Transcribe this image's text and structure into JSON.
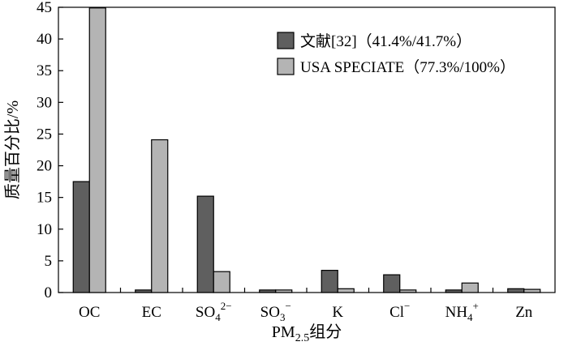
{
  "chart_data": {
    "type": "bar",
    "categories": [
      {
        "base": "OC",
        "sub": "",
        "sup": ""
      },
      {
        "base": "EC",
        "sub": "",
        "sup": ""
      },
      {
        "base": "SO",
        "sub": "4",
        "sup": "2−"
      },
      {
        "base": "SO",
        "sub": "3",
        "sup": "−"
      },
      {
        "base": "K",
        "sub": "",
        "sup": ""
      },
      {
        "base": "Cl",
        "sub": "",
        "sup": "−"
      },
      {
        "base": "NH",
        "sub": "4",
        "sup": "+"
      },
      {
        "base": "Zn",
        "sub": "",
        "sup": ""
      }
    ],
    "series": [
      {
        "name": "文献[32]（41.4%/41.7%）",
        "color": "#5f5f5f",
        "values": [
          17.5,
          0.4,
          15.2,
          0.4,
          3.5,
          2.8,
          0.4,
          0.6
        ]
      },
      {
        "name": "USA SPECIATE（77.3%/100%）",
        "color": "#b4b4b4",
        "values": [
          44.9,
          24.1,
          3.3,
          0.4,
          0.6,
          0.4,
          1.5,
          0.5
        ]
      }
    ],
    "ylim": [
      0,
      45
    ],
    "yticks": [
      0,
      5,
      10,
      15,
      20,
      25,
      30,
      35,
      40,
      45
    ],
    "ylabel": "质量百分比/%",
    "xlabel": {
      "base": "PM",
      "sub": "2.5",
      "rest": "组分"
    },
    "legend_position": "top-right",
    "grid": false
  }
}
